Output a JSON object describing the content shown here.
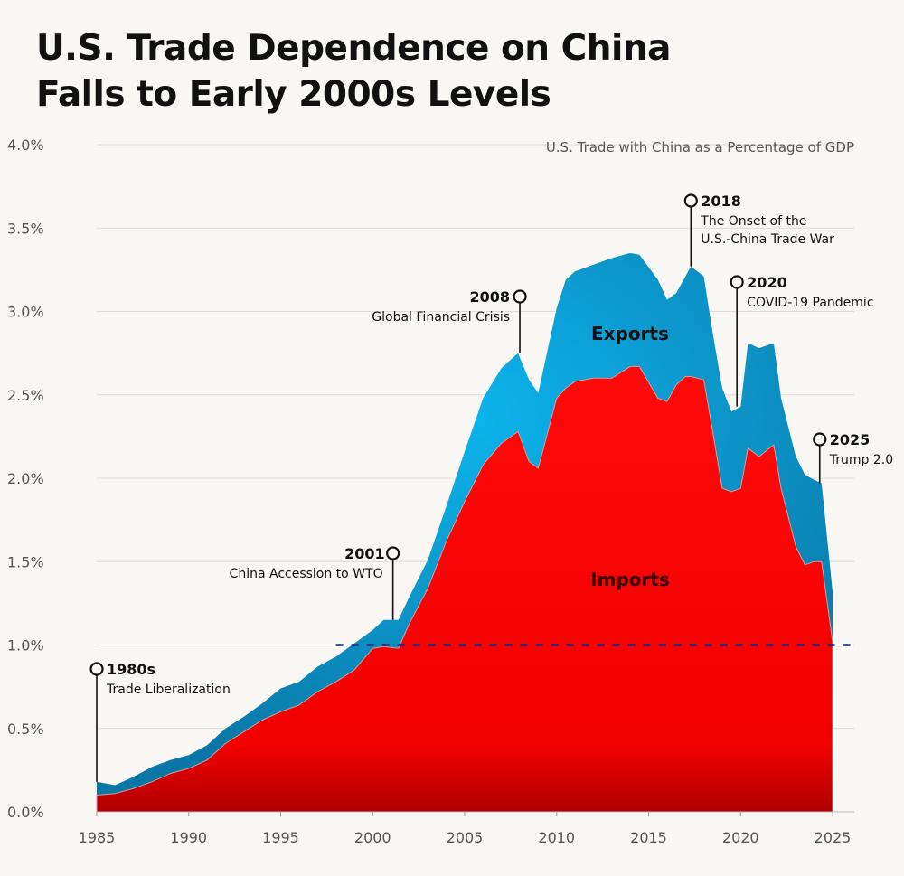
{
  "title_line1": "U.S. Trade Dependence on China",
  "title_line2": "Falls to Early 2000s Levels",
  "chart_data": {
    "type": "area",
    "stacked": true,
    "subtitle": "U.S. Trade with China as a Percentage of GDP",
    "xlabel": "",
    "ylabel": "",
    "xlim": [
      1985,
      2025
    ],
    "ylim": [
      0,
      4.0
    ],
    "x_ticks": [
      "1985",
      "1990",
      "1995",
      "2000",
      "2005",
      "2010",
      "2015",
      "2020",
      "2025"
    ],
    "y_ticks": [
      "0.0%",
      "0.5%",
      "1.0%",
      "1.5%",
      "2.0%",
      "2.5%",
      "3.0%",
      "3.5%",
      "4.0%"
    ],
    "grid": "horizontal",
    "reference_line": {
      "y": 1.0,
      "style": "dashed",
      "color": "#1a237e",
      "from_x": 1998
    },
    "colors": {
      "imports": "#ff0000",
      "exports": "#14a3dc"
    },
    "x": [
      1985,
      1986,
      1987,
      1988,
      1989,
      1990,
      1991,
      1992,
      1993,
      1994,
      1995,
      1996,
      1997,
      1998,
      1999,
      2000,
      2000.6,
      2001.4,
      2002,
      2003,
      2004,
      2005,
      2006,
      2007,
      2007.9,
      2008.5,
      2009,
      2010,
      2010.5,
      2011,
      2012,
      2013,
      2014,
      2014.5,
      2015.5,
      2016,
      2016.5,
      2017,
      2017.3,
      2018,
      2018.5,
      2019,
      2019.5,
      2020,
      2020.4,
      2021,
      2021.8,
      2022.2,
      2023,
      2023.5,
      2024,
      2024.4,
      2025
    ],
    "series": [
      {
        "name": "Imports",
        "values": [
          0.1,
          0.11,
          0.14,
          0.18,
          0.23,
          0.26,
          0.31,
          0.41,
          0.48,
          0.55,
          0.6,
          0.64,
          0.72,
          0.78,
          0.85,
          0.98,
          0.99,
          0.98,
          1.13,
          1.34,
          1.62,
          1.86,
          2.08,
          2.21,
          2.28,
          2.1,
          2.06,
          2.48,
          2.54,
          2.58,
          2.6,
          2.6,
          2.67,
          2.67,
          2.48,
          2.46,
          2.56,
          2.61,
          2.61,
          2.59,
          2.27,
          1.94,
          1.92,
          1.94,
          2.18,
          2.13,
          2.2,
          1.94,
          1.59,
          1.48,
          1.5,
          1.5,
          1.02
        ]
      },
      {
        "name": "Exports",
        "values": [
          0.08,
          0.05,
          0.07,
          0.09,
          0.08,
          0.08,
          0.09,
          0.09,
          0.09,
          0.1,
          0.14,
          0.14,
          0.15,
          0.15,
          0.16,
          0.11,
          0.16,
          0.17,
          0.16,
          0.17,
          0.21,
          0.3,
          0.4,
          0.45,
          0.47,
          0.49,
          0.45,
          0.54,
          0.65,
          0.66,
          0.68,
          0.72,
          0.68,
          0.67,
          0.71,
          0.61,
          0.55,
          0.6,
          0.66,
          0.62,
          0.59,
          0.6,
          0.48,
          0.49,
          0.63,
          0.65,
          0.61,
          0.54,
          0.54,
          0.54,
          0.49,
          0.47,
          0.3
        ]
      }
    ],
    "annotations": [
      {
        "year": "1980s",
        "text": "Trade Liberalization",
        "x": 1985,
        "y_top": 0.18
      },
      {
        "year": "2001",
        "text": "China Accession to WTO",
        "x": 2001.1,
        "y_top": 1.15
      },
      {
        "year": "2008",
        "text": "Global Financial Crisis",
        "x": 2008.0,
        "y_top": 2.75
      },
      {
        "year": "2018",
        "text": "The Onset of the",
        "text2": "U.S.-China Trade War",
        "x": 2017.3,
        "y_top": 3.27
      },
      {
        "year": "2020",
        "text": "COVID-19 Pandemic",
        "x": 2019.8,
        "y_top": 2.43
      },
      {
        "year": "2025",
        "text": "Trump 2.0",
        "x": 2024.3,
        "y_top": 1.97
      }
    ]
  }
}
